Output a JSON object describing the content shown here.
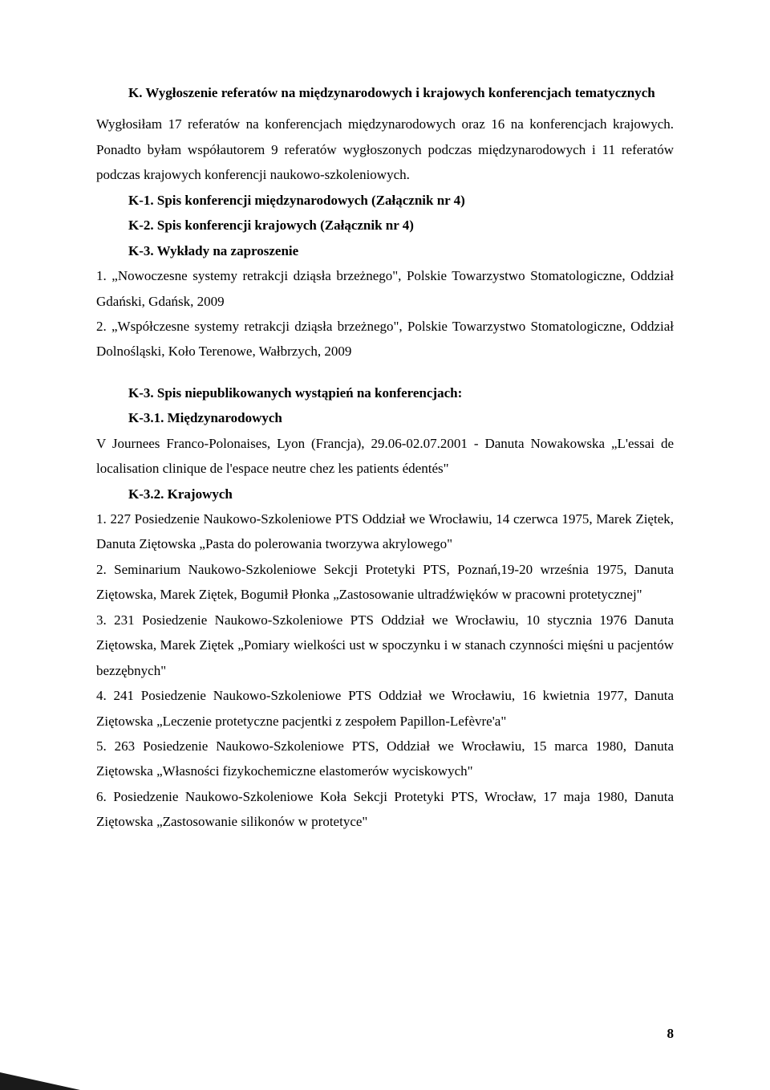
{
  "headingK": "K. Wygłoszenie referatów na międzynarodowych i krajowych konferencjach tematycznych",
  "paraK": "Wygłosiłam 17 referatów na konferencjach międzynarodowych oraz 16 na konferencjach krajowych. Ponadto byłam współautorem 9 referatów wygłoszonych podczas międzynarodowych i 11 referatów podczas krajowych konferencji naukowo-szkoleniowych.",
  "k1": "K-1. Spis konferencji międzynarodowych (Załącznik nr 4)",
  "k2": "K-2. Spis konferencji krajowych (Załącznik nr 4)",
  "k3": "K-3. Wykłady na zaproszenie",
  "k3_item1": "1. „Nowoczesne systemy retrakcji dziąsła brzeżnego\", Polskie Towarzystwo Stomatologiczne, Oddział Gdański, Gdańsk, 2009",
  "k3_item2": "2. „Współczesne systemy retrakcji dziąsła brzeżnego\", Polskie Towarzystwo Stomatologiczne, Oddział Dolnośląski, Koło Terenowe, Wałbrzych, 2009",
  "k3_spis": "K-3. Spis niepublikowanych wystąpień na konferencjach:",
  "k31": "K-3.1. Międzynarodowych",
  "k31_text": "V Journees Franco-Polonaises, Lyon (Francja), 29.06-02.07.2001 - Danuta Nowakowska „L'essai de localisation clinique  de l'espace neutre chez les patients édentés\"",
  "k32": "K-3.2. Krajowych",
  "k32_1": "1. 227 Posiedzenie Naukowo-Szkoleniowe PTS Oddział we Wrocławiu, 14 czerwca 1975, Marek Ziętek, Danuta Ziętowska „Pasta do polerowania tworzywa akrylowego\"",
  "k32_2": "2. Seminarium Naukowo-Szkoleniowe Sekcji Protetyki PTS, Poznań,19-20 września 1975, Danuta Ziętowska, Marek Ziętek, Bogumił Płonka „Zastosowanie ultradźwięków w pracowni protetycznej\"",
  "k32_3": "3. 231 Posiedzenie Naukowo-Szkoleniowe PTS Oddział we Wrocławiu, 10 stycznia 1976 Danuta Ziętowska, Marek Ziętek „Pomiary wielkości ust w spoczynku i w stanach czynności mięśni u pacjentów bezzębnych\"",
  "k32_4": " 4. 241 Posiedzenie Naukowo-Szkoleniowe PTS Oddział we Wrocławiu, 16 kwietnia 1977, Danuta Ziętowska „Leczenie protetyczne pacjentki z zespołem Papillon-Lefèvre'a\"",
  "k32_5": "5. 263 Posiedzenie Naukowo-Szkoleniowe PTS, Oddział we Wrocławiu, 15 marca 1980, Danuta Ziętowska „Własności fizykochemiczne elastomerów wyciskowych\"",
  "k32_6": "6. Posiedzenie Naukowo-Szkoleniowe Koła Sekcji Protetyki PTS, Wrocław, 17 maja 1980, Danuta Ziętowska „Zastosowanie silikonów w protetyce\"",
  "pageNumber": "8"
}
